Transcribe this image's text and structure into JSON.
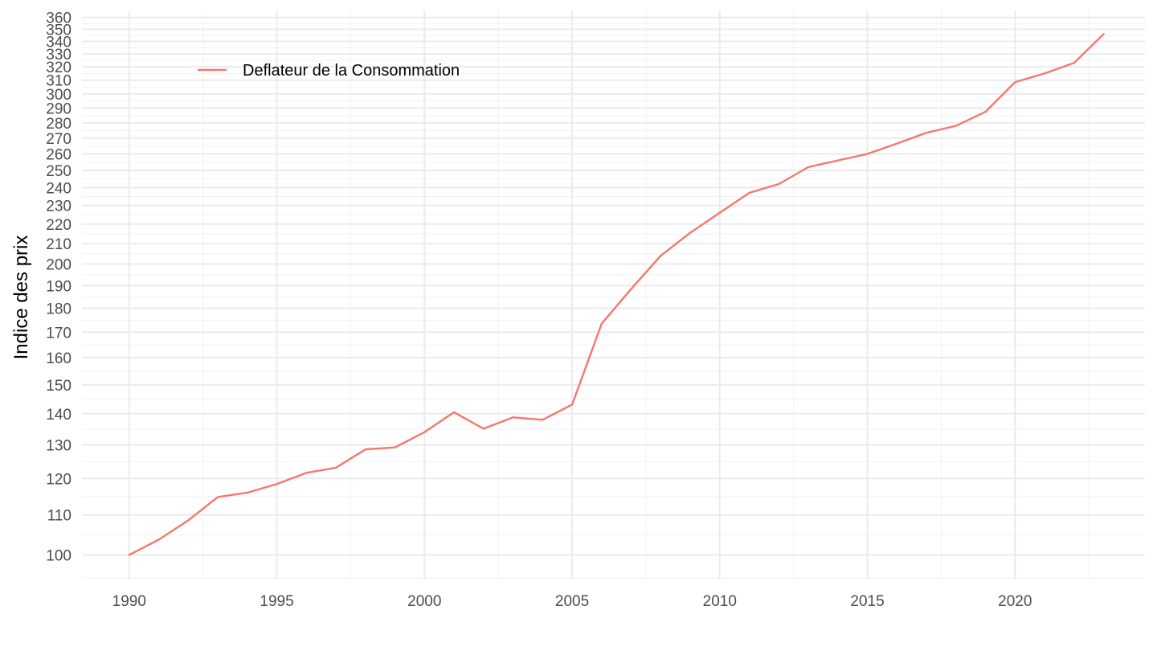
{
  "chart_data": {
    "type": "line",
    "title": "",
    "xlabel": "",
    "ylabel": "Indice des prix",
    "y_scale": "log",
    "xlim": [
      1988.4,
      2024.4
    ],
    "ylim": [
      94.5,
      366
    ],
    "x_ticks": [
      1990,
      1995,
      2000,
      2005,
      2010,
      2015,
      2020
    ],
    "x_tick_labels": [
      "1990",
      "1995",
      "2000",
      "2005",
      "2010",
      "2015",
      "2020"
    ],
    "y_ticks": [
      100,
      110,
      120,
      130,
      140,
      150,
      160,
      170,
      180,
      190,
      200,
      210,
      220,
      230,
      240,
      250,
      260,
      270,
      280,
      290,
      300,
      310,
      320,
      330,
      340,
      350,
      360
    ],
    "y_tick_labels": [
      "100",
      "110",
      "120",
      "130",
      "140",
      "150",
      "160",
      "170",
      "180",
      "190",
      "200",
      "210",
      "220",
      "230",
      "240",
      "250",
      "260",
      "270",
      "280",
      "290",
      "300",
      "310",
      "320",
      "330",
      "340",
      "350",
      "360"
    ],
    "grid": true,
    "legend": {
      "position": "top-left",
      "entries": [
        "Deflateur de la Consommation"
      ]
    },
    "series": [
      {
        "name": "Deflateur de la Consommation",
        "color": "#F8766D",
        "x": [
          1990,
          1991,
          1992,
          1993,
          1994,
          1995,
          1996,
          1997,
          1998,
          1999,
          2000,
          2001,
          2002,
          2003,
          2004,
          2005,
          2006,
          2007,
          2008,
          2009,
          2010,
          2011,
          2012,
          2013,
          2014,
          2015,
          2016,
          2017,
          2018,
          2019,
          2020,
          2021,
          2022,
          2023
        ],
        "y": [
          100,
          103.7,
          108.6,
          114.8,
          116.0,
          118.4,
          121.6,
          123.1,
          128.6,
          129.2,
          134.0,
          140.5,
          135.1,
          138.8,
          138.0,
          143.1,
          173.5,
          188.5,
          204.0,
          215.5,
          226.0,
          237.0,
          242.0,
          252.0,
          256.0,
          260.0,
          266.5,
          273.5,
          278.0,
          287.5,
          308.5,
          315.0,
          323.0,
          346.0
        ]
      }
    ]
  }
}
